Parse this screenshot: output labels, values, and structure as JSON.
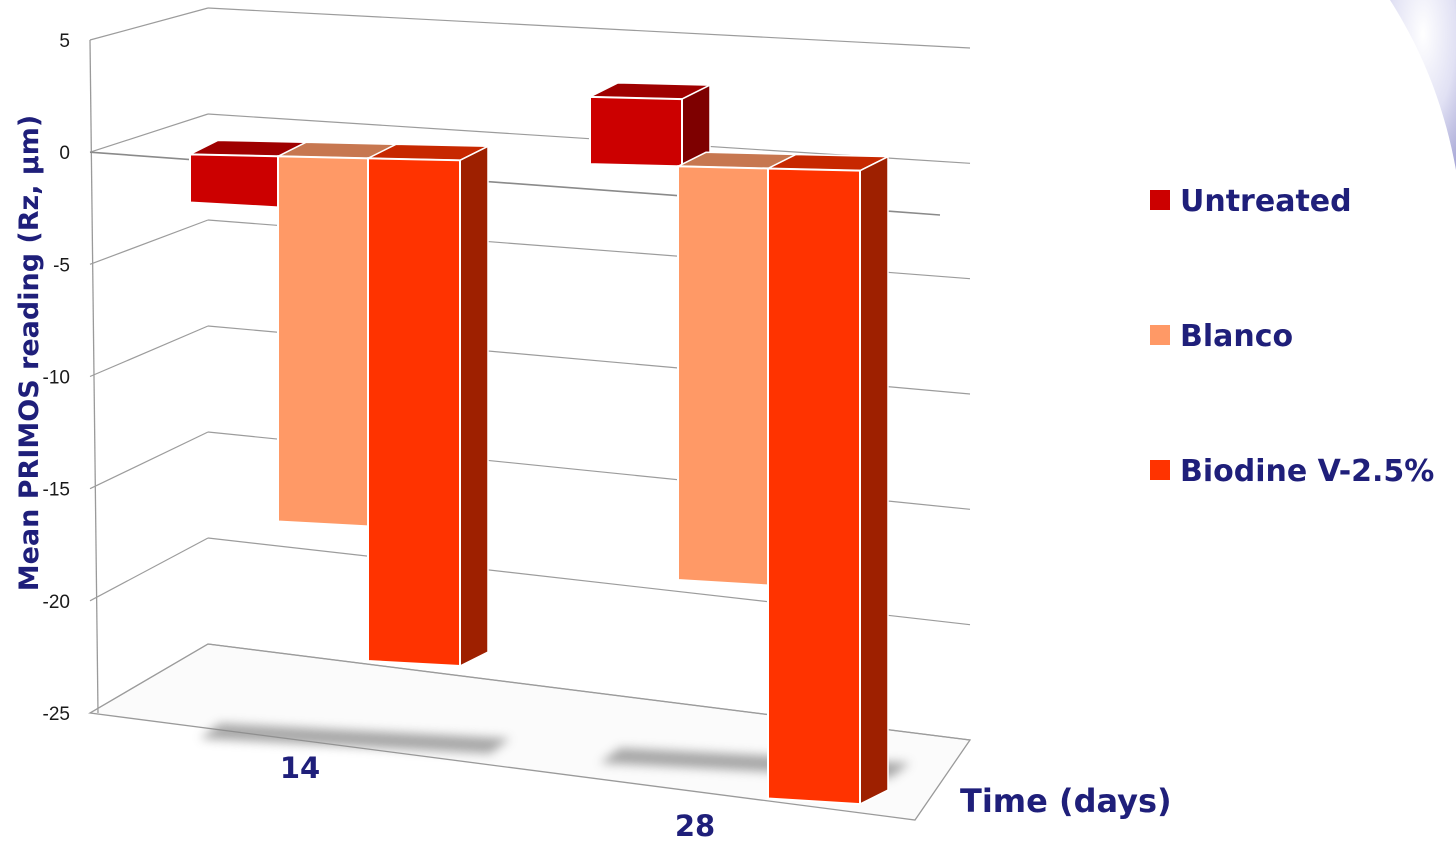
{
  "chart_data": {
    "type": "bar",
    "title": "",
    "categories": [
      "14",
      "28"
    ],
    "series": [
      {
        "name": "Untreated",
        "values": [
          -2,
          3
        ],
        "color": "#cc0000"
      },
      {
        "name": "Blanco",
        "values": [
          -16,
          -17.5
        ],
        "color": "#ff9966"
      },
      {
        "name": "Biodine V-2.5%",
        "values": [
          -22,
          -27
        ],
        "color": "#ff3300"
      }
    ],
    "xlabel": "Time (days)",
    "ylabel": "Mean PRIMOS reading (Rz, µm)",
    "ylim": [
      -25,
      5
    ],
    "yticks": [
      5,
      0,
      -5,
      -10,
      -15,
      -20,
      -25
    ],
    "grid": true,
    "legend_position": "right",
    "style": "3d-clustered-column"
  }
}
